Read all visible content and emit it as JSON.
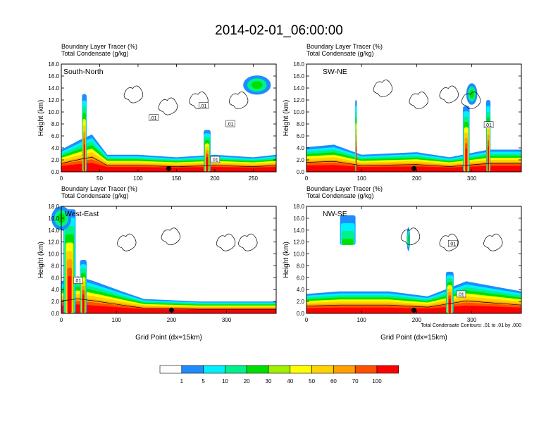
{
  "title": "2014-02-01_06:00:00",
  "panels": [
    {
      "labels": [
        "Boundary Layer Tracer   (%)",
        "Total Condensate   (g/kg)"
      ],
      "annotation": "South-North",
      "ylabel": "Height (km)",
      "xlabel": "",
      "xticks": [
        "0",
        "50",
        "100",
        "150",
        "200",
        "250"
      ],
      "yticks": [
        "0.0",
        "2.0",
        "4.0",
        "6.0",
        "8.0",
        "10.0",
        "12.0",
        "14.0",
        "16.0",
        "18.0"
      ],
      "contour_labels": [
        ".01",
        ".01",
        ".01",
        ".01"
      ]
    },
    {
      "labels": [
        "Boundary Layer Tracer   (%)",
        "Total Condensate   (g/kg)"
      ],
      "annotation": "SW-NE",
      "ylabel": "Height (km)",
      "xlabel": "",
      "xticks": [
        "0",
        "100",
        "200",
        "300"
      ],
      "yticks": [
        "0.0",
        "2.0",
        "4.0",
        "6.0",
        "8.0",
        "10.0",
        "12.0",
        "14.0",
        "16.0",
        "18.0"
      ],
      "contour_labels": [
        ".01"
      ]
    },
    {
      "labels": [
        "Boundary Layer Tracer   (%)",
        "Total Condensate   (g/kg)"
      ],
      "annotation": "West-East",
      "ylabel": "Height (km)",
      "xlabel": "Grid Point (dx=15km)",
      "xticks": [
        "0",
        "100",
        "200",
        "300"
      ],
      "yticks": [
        "0.0",
        "2.0",
        "4.0",
        "6.0",
        "8.0",
        "10.0",
        "12.0",
        "14.0",
        "16.0",
        "18.0"
      ],
      "contour_labels": [
        ".01"
      ]
    },
    {
      "labels": [
        "Boundary Layer Tracer   (%)",
        "Total Condensate   (g/kg)"
      ],
      "annotation": "NW-SE",
      "ylabel": "Height (km)",
      "xlabel": "Grid Point (dx=15km)",
      "xticks": [
        "0",
        "100",
        "200",
        "300"
      ],
      "yticks": [
        "0.0",
        "2.0",
        "4.0",
        "6.0",
        "8.0",
        "10.0",
        "12.0",
        "14.0",
        "16.0",
        "18.0"
      ],
      "contour_labels": [
        ".01",
        ".01"
      ]
    }
  ],
  "contour_note": "Total Condensate Contours: .01 to .01 by .000",
  "colorbar": {
    "ticks": [
      "1",
      "5",
      "10",
      "20",
      "30",
      "40",
      "50",
      "60",
      "70",
      "100"
    ],
    "colors": [
      "#ffffff",
      "#1e8cff",
      "#00f0ff",
      "#00f08c",
      "#00e000",
      "#a0f000",
      "#ffff00",
      "#ffd200",
      "#ffa000",
      "#ff5000",
      "#ff0000"
    ]
  },
  "chart_data": [
    {
      "type": "heatmap",
      "panel": "South-North",
      "x_range": [
        0,
        280
      ],
      "ylim": [
        0,
        18
      ],
      "ylabel": "Height (km)",
      "colorbar_levels": [
        1,
        5,
        10,
        20,
        30,
        40,
        50,
        60,
        70,
        100
      ]
    },
    {
      "type": "heatmap",
      "panel": "SW-NE",
      "x_range": [
        0,
        390
      ],
      "ylim": [
        0,
        18
      ],
      "ylabel": "Height (km)",
      "colorbar_levels": [
        1,
        5,
        10,
        20,
        30,
        40,
        50,
        60,
        70,
        100
      ]
    },
    {
      "type": "heatmap",
      "panel": "West-East",
      "x_range": [
        0,
        390
      ],
      "ylim": [
        0,
        18
      ],
      "xlabel": "Grid Point (dx=15km)",
      "ylabel": "Height (km)",
      "colorbar_levels": [
        1,
        5,
        10,
        20,
        30,
        40,
        50,
        60,
        70,
        100
      ]
    },
    {
      "type": "heatmap",
      "panel": "NW-SE",
      "x_range": [
        0,
        390
      ],
      "ylim": [
        0,
        18
      ],
      "xlabel": "Grid Point (dx=15km)",
      "ylabel": "Height (km)",
      "colorbar_levels": [
        1,
        5,
        10,
        20,
        30,
        40,
        50,
        60,
        70,
        100
      ]
    }
  ]
}
